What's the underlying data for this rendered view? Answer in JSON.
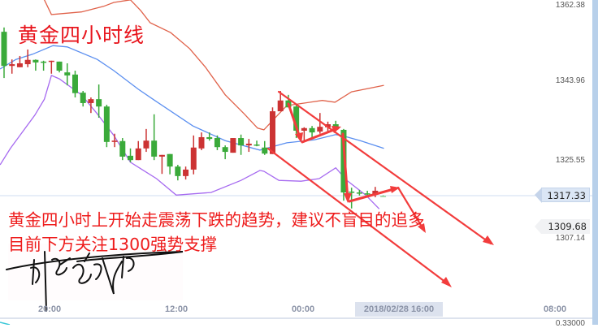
{
  "chart_data": {
    "type": "candlestick",
    "title": "",
    "y_axis": {
      "ticks": [
        "1362.38",
        "1343.96",
        "1325.55",
        "1307.14"
      ],
      "range": [
        1300,
        1364
      ]
    },
    "x_axis": {
      "ticks": [
        "20:00",
        "12:00",
        "00:00",
        "08:00"
      ],
      "crosshair_label": "2018/02/28 16:00"
    },
    "price_tags": {
      "current": "1317.33",
      "marker": "1309.68"
    },
    "colors": {
      "up": "#cc3333",
      "down": "#3aaa3a",
      "upper_band": "#e0624a",
      "middle_band": "#5b8ff0",
      "lower_band": "#a66af0",
      "annotation": "#f03a3a"
    },
    "ohlc_columns": [
      "open",
      "high",
      "low",
      "close"
    ],
    "candles": [
      [
        1355.4,
        1356.4,
        1344.7,
        1347.5
      ],
      [
        1347.5,
        1349.0,
        1345.7,
        1347.9
      ],
      [
        1347.2,
        1349.8,
        1347.2,
        1348.1
      ],
      [
        1347.9,
        1351.3,
        1347.2,
        1348.9
      ],
      [
        1348.9,
        1349.0,
        1346.4,
        1348.3
      ],
      [
        1348.5,
        1348.7,
        1346.4,
        1348.3
      ],
      [
        1348.5,
        1348.7,
        1345.7,
        1348.7
      ],
      [
        1348.5,
        1348.5,
        1346.0,
        1346.4
      ],
      [
        1346.0,
        1348.1,
        1343.0,
        1345.3
      ],
      [
        1345.5,
        1346.4,
        1340.2,
        1341.2
      ],
      [
        1341.3,
        1341.7,
        1338.1,
        1338.9
      ],
      [
        1338.9,
        1340.2,
        1336.6,
        1339.8
      ],
      [
        1339.8,
        1343.2,
        1335.5,
        1338.1
      ],
      [
        1338.1,
        1338.5,
        1328.7,
        1329.9
      ],
      [
        1329.9,
        1331.8,
        1328.7,
        1330.2
      ],
      [
        1330.1,
        1330.8,
        1325.7,
        1326.5
      ],
      [
        1326.7,
        1328.4,
        1325.2,
        1325.7
      ],
      [
        1325.7,
        1330.1,
        1325.7,
        1328.4
      ],
      [
        1328.4,
        1332.9,
        1327.6,
        1330.2
      ],
      [
        1330.2,
        1336.3,
        1325.7,
        1326.5
      ],
      [
        1326.5,
        1326.9,
        1322.5,
        1326.9
      ],
      [
        1327.1,
        1327.1,
        1322.4,
        1324.2
      ],
      [
        1324.2,
        1324.6,
        1321.0,
        1322.0
      ],
      [
        1322.0,
        1324.2,
        1321.2,
        1323.5
      ],
      [
        1323.5,
        1331.4,
        1322.4,
        1328.6
      ],
      [
        1328.4,
        1332.1,
        1328.0,
        1331.0
      ],
      [
        1331.0,
        1332.1,
        1330.2,
        1330.6
      ],
      [
        1330.8,
        1331.4,
        1328.0,
        1328.7
      ],
      [
        1328.7,
        1329.1,
        1325.9,
        1327.6
      ],
      [
        1327.4,
        1330.8,
        1327.4,
        1330.8
      ],
      [
        1330.8,
        1331.6,
        1326.9,
        1329.1
      ],
      [
        1329.1,
        1330.6,
        1327.6,
        1329.5
      ],
      [
        1329.3,
        1330.2,
        1328.9,
        1329.1
      ],
      [
        1328.6,
        1330.1,
        1326.9,
        1327.2
      ],
      [
        1327.1,
        1337.9,
        1327.1,
        1337.0
      ],
      [
        1337.0,
        1341.7,
        1337.0,
        1339.5
      ],
      [
        1339.5,
        1340.8,
        1337.9,
        1337.9
      ],
      [
        1338.1,
        1338.5,
        1330.8,
        1332.5
      ],
      [
        1332.5,
        1333.3,
        1330.2,
        1333.1
      ],
      [
        1333.1,
        1333.6,
        1331.0,
        1332.1
      ],
      [
        1332.3,
        1336.6,
        1331.8,
        1333.4
      ],
      [
        1333.3,
        1334.6,
        1332.1,
        1334.0
      ],
      [
        1334.0,
        1334.8,
        1332.5,
        1333.3
      ],
      [
        1332.7,
        1332.9,
        1316.3,
        1318.2
      ],
      [
        1318.4,
        1319.3,
        1314.5,
        1318.2
      ],
      [
        1318.2,
        1318.8,
        1317.5,
        1318.0
      ],
      [
        1318.0,
        1318.6,
        1317.3,
        1317.8
      ],
      [
        1317.7,
        1319.5,
        1317.1,
        1318.6
      ],
      [
        1317.4,
        1317.6,
        1317.2,
        1317.3
      ]
    ],
    "bands": {
      "upper": [
        [
          0.5,
          1368.4
        ],
        [
          6.1,
          1362.8
        ],
        [
          7.0,
          1359.4
        ],
        [
          10.8,
          1360.0
        ],
        [
          13.6,
          1361.3
        ],
        [
          14.9,
          1362.2
        ],
        [
          17.0,
          1362.8
        ],
        [
          18.3,
          1360.3
        ],
        [
          19.5,
          1357.5
        ],
        [
          22.1,
          1355.2
        ],
        [
          24.5,
          1351.5
        ],
        [
          26.5,
          1347.2
        ],
        [
          29.0,
          1340.8
        ],
        [
          31.4,
          1336.4
        ],
        [
          33.1,
          1333.1
        ],
        [
          33.9,
          1332.7
        ],
        [
          35.8,
          1336.4
        ],
        [
          36.8,
          1338.3
        ],
        [
          41.3,
          1339.5
        ],
        [
          42.9,
          1339.1
        ],
        [
          45.0,
          1341.5
        ],
        [
          49.1,
          1343.0
        ]
      ],
      "middle": [
        [
          0.5,
          1346.8
        ],
        [
          2.5,
          1349.0
        ],
        [
          4.6,
          1350.2
        ],
        [
          7.2,
          1352.2
        ],
        [
          9.0,
          1351.9
        ],
        [
          12.8,
          1349.0
        ],
        [
          14.9,
          1346.4
        ],
        [
          18.0,
          1342.1
        ],
        [
          20.0,
          1339.6
        ],
        [
          24.9,
          1333.6
        ],
        [
          29.0,
          1330.2
        ],
        [
          33.4,
          1328.0
        ],
        [
          36.8,
          1329.7
        ],
        [
          40.3,
          1330.4
        ],
        [
          43.0,
          1331.6
        ],
        [
          43.7,
          1331.4
        ],
        [
          46.1,
          1330.2
        ],
        [
          49.1,
          1328.4
        ]
      ],
      "lower": [
        [
          0.5,
          1324.6
        ],
        [
          1.8,
          1328.4
        ],
        [
          4.9,
          1336.1
        ],
        [
          6.1,
          1339.8
        ],
        [
          7.0,
          1345.3
        ],
        [
          8.0,
          1344.5
        ],
        [
          10.8,
          1340.8
        ],
        [
          12.8,
          1336.4
        ],
        [
          14.9,
          1331.4
        ],
        [
          17.0,
          1325.2
        ],
        [
          18.3,
          1323.7
        ],
        [
          20.3,
          1321.4
        ],
        [
          22.8,
          1317.6
        ],
        [
          27.2,
          1318.2
        ],
        [
          31.0,
          1321.0
        ],
        [
          33.4,
          1323.3
        ],
        [
          33.9,
          1323.1
        ],
        [
          35.8,
          1321.0
        ],
        [
          38.6,
          1320.8
        ],
        [
          40.9,
          1321.4
        ],
        [
          43.0,
          1323.9
        ],
        [
          44.4,
          1321.0
        ],
        [
          46.8,
          1317.6
        ],
        [
          48.5,
          1314.4
        ]
      ]
    }
  },
  "annotations": {
    "title": "黄金四小时线",
    "line1": "黄金四小时上开始走震荡下跌的趋势，建议不盲目的追多",
    "line2": "目前下方关注1300强势支撑",
    "signature": "signature"
  },
  "sub_panel": {
    "tick": "0.33000"
  }
}
